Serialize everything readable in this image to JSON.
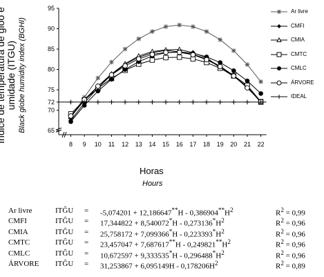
{
  "chart_data": {
    "type": "line",
    "y_axis": {
      "min": 64,
      "max": 95,
      "ticks": [
        65,
        70,
        72,
        75,
        80,
        85,
        90,
        95
      ],
      "break": true
    },
    "x_axis": {
      "ticks": [
        8,
        9,
        10,
        11,
        12,
        13,
        14,
        15,
        16,
        17,
        18,
        19,
        20,
        21,
        22
      ],
      "break": true
    },
    "x": [
      8,
      9,
      10,
      11,
      12,
      13,
      14,
      15,
      16,
      17,
      18,
      19,
      20,
      21,
      22
    ],
    "xlabel": "Horas",
    "xlabel_sub": "Hours",
    "ylabel": "Índice de temperatura de gloo e umidade (ITGU)",
    "ylabel_sub": "Black globe humidity index (BGHI)",
    "legend_position": "right",
    "grid": false,
    "series": [
      {
        "name": "Ar livre",
        "marker": "star",
        "color": "#555555",
        "values": [
          68.1,
          73.2,
          77.9,
          81.8,
          85.0,
          87.5,
          89.3,
          90.5,
          90.9,
          90.5,
          89.3,
          87.3,
          84.6,
          81.2,
          77.0
        ]
      },
      {
        "name": "CMFI",
        "marker": "diamond",
        "color": "#000000",
        "values": [
          67.5,
          71.8,
          75.5,
          78.7,
          81.3,
          83.0,
          84.1,
          84.7,
          84.3,
          83.7,
          82.6,
          80.8,
          78.5,
          75.6,
          72.1
        ]
      },
      {
        "name": "CMIA",
        "marker": "triangle",
        "color": "#000000",
        "values": [
          68.4,
          72.4,
          75.9,
          78.9,
          81.4,
          83.3,
          84.4,
          84.8,
          84.9,
          84.1,
          82.9,
          80.4,
          78.3,
          75.8,
          71.9
        ]
      },
      {
        "name": "CMTC",
        "marker": "square",
        "color": "#000000",
        "values": [
          69.1,
          72.5,
          75.4,
          77.8,
          79.8,
          81.3,
          82.3,
          82.9,
          83.0,
          82.6,
          81.7,
          80.3,
          78.5,
          76.1,
          72.1
        ]
      },
      {
        "name": "CMLC",
        "marker": "circle-filled",
        "color": "#000000",
        "values": [
          67.2,
          71.2,
          74.7,
          77.6,
          80.0,
          81.9,
          83.3,
          84.1,
          84.3,
          84.0,
          83.1,
          81.7,
          79.7,
          77.2,
          74.1
        ]
      },
      {
        "name": "ÁRVORE",
        "marker": "circle-open",
        "color": "#000000",
        "values": [
          68.6,
          72.6,
          75.9,
          78.7,
          80.9,
          82.6,
          83.7,
          84.2,
          84.2,
          83.6,
          82.4,
          80.7,
          78.4,
          75.5,
          72.1
        ]
      },
      {
        "name": "IDEAL",
        "marker": "plus",
        "color": "#000000",
        "values": [
          72,
          72,
          72,
          72,
          72,
          72,
          72,
          72,
          72,
          72,
          72,
          72,
          72,
          72,
          72
        ]
      }
    ]
  },
  "equations": [
    {
      "name": "Ar livre",
      "var": "ITĜU",
      "eq": "=",
      "expr": "-5,074201 + 12,186647**H - 0,386904**H2",
      "r2": "R2 = 0,99"
    },
    {
      "name": "CMFI",
      "var": "ITĜU",
      "eq": "=",
      "expr": "17,344822 + 8,540072*H - 0,273136*H2",
      "r2": "R2 = 0,96"
    },
    {
      "name": "CMIA",
      "var": "ITĜU",
      "eq": "=",
      "expr": "25,758172 + 7,099366*H - 0,223393*H2",
      "r2": "R2 = 0,96"
    },
    {
      "name": "CMTC",
      "var": "ITĜU",
      "eq": "=",
      "expr": "23,457047 + 7,687617**H - 0,249821**H2",
      "r2": "R2 = 0,96"
    },
    {
      "name": "CMLC",
      "var": "ITĜU",
      "eq": "=",
      "expr": "10,672597 + 9,333535*H - 0,296488*H2",
      "r2": "R2 = 0,96"
    },
    {
      "name": "ÁRVORE",
      "var": "ITĜU",
      "eq": "=",
      "expr": "31,253867 + 6,095149H - 0,178206H2",
      "r2": "R2 = 0,89"
    }
  ]
}
